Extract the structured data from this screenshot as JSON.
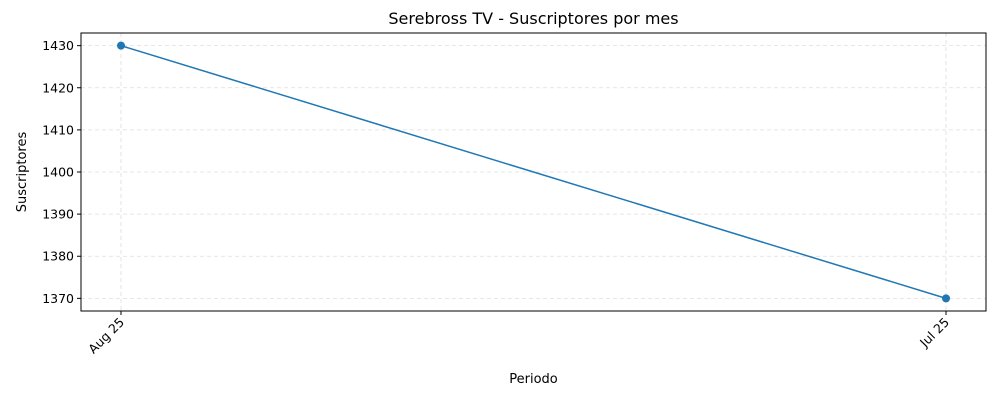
{
  "chart_data": {
    "type": "line",
    "title": "Serebross TV - Suscriptores por mes",
    "xlabel": "Periodo",
    "ylabel": "Suscriptores",
    "categories": [
      "Aug 25",
      "Jul 25"
    ],
    "series": [
      {
        "values": [
          1430,
          1370
        ],
        "color": "#1f77b4",
        "marker": "circle"
      }
    ],
    "yticks": [
      1370,
      1380,
      1390,
      1400,
      1410,
      1420,
      1430
    ],
    "ylim": [
      1367,
      1433
    ],
    "grid": true,
    "grid_style": "dashed",
    "xtick_rotation": 45
  }
}
